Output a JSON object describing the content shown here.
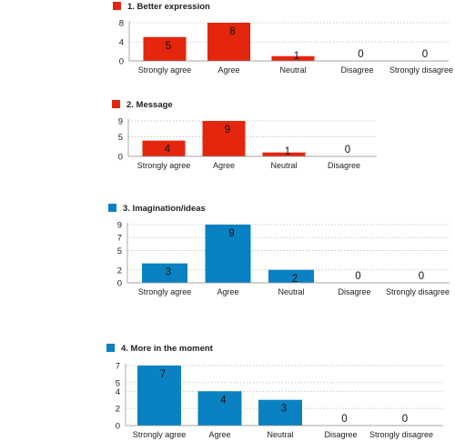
{
  "chart_data": [
    {
      "type": "bar",
      "title": "1. Better expression",
      "color": "#e3260d",
      "categories": [
        "Strongly agree",
        "Agree",
        "Neutral",
        "Disagree",
        "Strongly disagree"
      ],
      "values": [
        5,
        8,
        1,
        0,
        0
      ],
      "yticks": [
        0,
        4,
        8
      ],
      "ylim": [
        0,
        8
      ],
      "grid": true,
      "legend": "top-left"
    },
    {
      "type": "bar",
      "title": "2. Message",
      "color": "#e3260d",
      "categories": [
        "Strongly agree",
        "Agree",
        "Neutral",
        "Disagree"
      ],
      "values": [
        4,
        9,
        1,
        0
      ],
      "yticks": [
        0,
        5,
        9
      ],
      "ylim": [
        0,
        9
      ],
      "grid": true,
      "legend": "top-left"
    },
    {
      "type": "bar",
      "title": "3. Imagination/ideas",
      "color": "#0a81c2",
      "categories": [
        "Strongly agree",
        "Agree",
        "Neutral",
        "Disagree",
        "Strongly disagree"
      ],
      "values": [
        3,
        9,
        2,
        0,
        0
      ],
      "yticks": [
        0,
        2,
        5,
        7,
        9
      ],
      "ylim": [
        0,
        9
      ],
      "grid": true,
      "legend": "top-left"
    },
    {
      "type": "bar",
      "title": "4. More in the moment",
      "color": "#0a81c2",
      "categories": [
        "Strongly agree",
        "Agree",
        "Neutral",
        "Disagree",
        "Strongly disagree"
      ],
      "values": [
        7,
        4,
        3,
        0,
        0
      ],
      "yticks": [
        0,
        2,
        4,
        5,
        7
      ],
      "ylim": [
        0,
        7
      ],
      "grid": true,
      "legend": "top-left"
    }
  ]
}
